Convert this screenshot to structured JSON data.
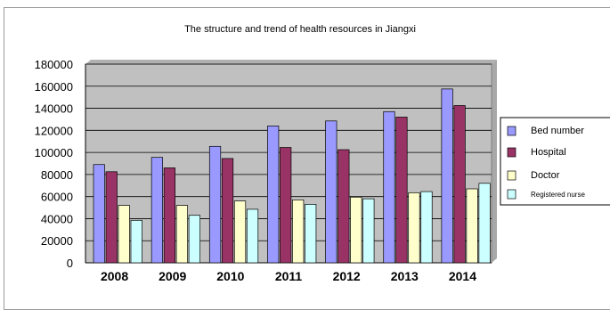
{
  "chart_data": {
    "type": "bar",
    "title": "The structure and trend of health resources in Jiangxi",
    "xlabel": "",
    "ylabel": "",
    "categories": [
      "2008",
      "2009",
      "2010",
      "2011",
      "2012",
      "2013",
      "2014"
    ],
    "ylim": [
      0,
      180000
    ],
    "yticks": [
      0,
      20000,
      40000,
      60000,
      80000,
      100000,
      120000,
      140000,
      160000,
      180000
    ],
    "grid": true,
    "legend_position": "right",
    "series": [
      {
        "name": "Bed number",
        "color": "#9999ff",
        "values": [
          89000,
          95500,
          105500,
          124000,
          128500,
          137000,
          157500
        ]
      },
      {
        "name": "Hospital",
        "color": "#993366",
        "values": [
          82500,
          86000,
          94500,
          104500,
          102500,
          132000,
          142500
        ]
      },
      {
        "name": "Doctor",
        "color": "#ffffcc",
        "values": [
          52000,
          52000,
          56000,
          57000,
          59500,
          63500,
          67000
        ]
      },
      {
        "name": "Registered nurse",
        "color": "#ccffff",
        "values": [
          38500,
          43000,
          48500,
          53000,
          58000,
          64500,
          72000
        ]
      }
    ],
    "plot_background": "#c0c0c0"
  }
}
